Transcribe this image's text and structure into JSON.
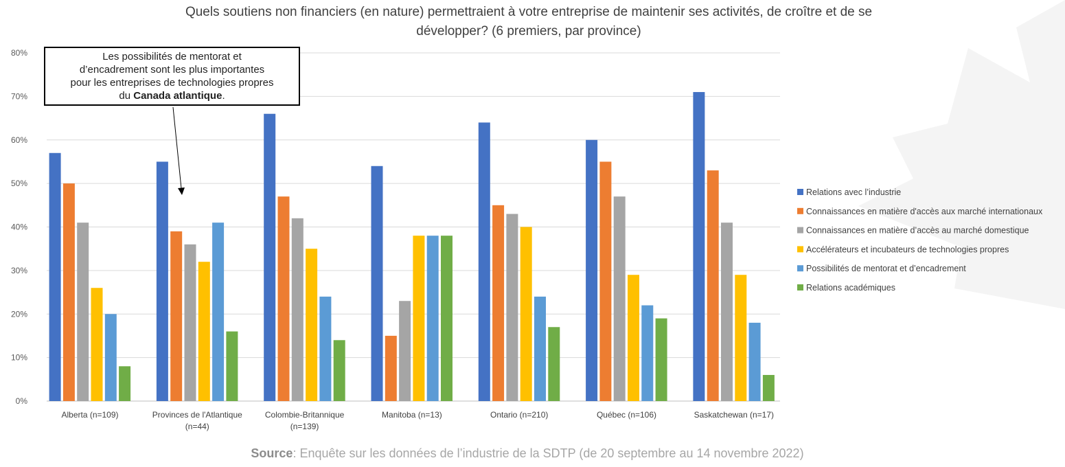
{
  "chart_data": {
    "type": "bar",
    "title": "Quels soutiens non financiers (en nature) permettraient à votre entreprise de maintenir ses activités, de croître et de se développer? (6 premiers, par province)",
    "title_lines": [
      "Quels soutiens non financiers (en nature) permettraient à votre entreprise de maintenir ses activités, de croître et de se",
      "développer? (6 premiers, par province)"
    ],
    "xlabel": "",
    "ylabel": "",
    "ylim": [
      0,
      80
    ],
    "yticks": [
      "0%",
      "10%",
      "20%",
      "30%",
      "40%",
      "50%",
      "60%",
      "70%",
      "80%"
    ],
    "grid": true,
    "legend_position": "right",
    "categories": [
      [
        "Alberta (n=109)"
      ],
      [
        "Provinces de l'Atlantique",
        "(n=44)"
      ],
      [
        "Colombie-Britannique",
        "(n=139)"
      ],
      [
        "Manitoba (n=13)"
      ],
      [
        "Ontario (n=210)"
      ],
      [
        "Québec (n=106)"
      ],
      [
        "Saskatchewan (n=17)"
      ]
    ],
    "series": [
      {
        "name": "Relations avec l’industrie",
        "color": "#4472c4",
        "values": [
          57,
          55,
          66,
          54,
          64,
          60,
          71
        ]
      },
      {
        "name": "Connaissances en matière d'accès aux marché internationaux",
        "color": "#ed7d31",
        "values": [
          50,
          39,
          47,
          15,
          45,
          55,
          53
        ]
      },
      {
        "name": "Connaissances en matière d’accès au marché domestique",
        "color": "#a5a5a5",
        "values": [
          41,
          36,
          42,
          23,
          43,
          47,
          41
        ]
      },
      {
        "name": "Accélérateurs et incubateurs de technologies propres",
        "color": "#ffc000",
        "values": [
          26,
          32,
          35,
          38,
          40,
          29,
          29
        ]
      },
      {
        "name": "Possibilités de mentorat et d’encadrement",
        "color": "#5b9bd5",
        "values": [
          20,
          41,
          24,
          38,
          24,
          22,
          18
        ]
      },
      {
        "name": "Relations académiques",
        "color": "#70ad47",
        "values": [
          8,
          16,
          14,
          38,
          17,
          19,
          6
        ]
      }
    ],
    "annotation": {
      "line1": "Les possibilités de mentorat et",
      "line2": "d’encadrement sont les plus importantes",
      "line3": "pour les entreprises de technologies propres",
      "line4_prefix": "du ",
      "line4_bold": "Canada atlantique",
      "line4_suffix": "."
    }
  },
  "source": {
    "label": "Source",
    "text": ": Enquête sur les données de l’industrie de la SDTP (de 20 septembre au 14 novembre 2022)"
  }
}
